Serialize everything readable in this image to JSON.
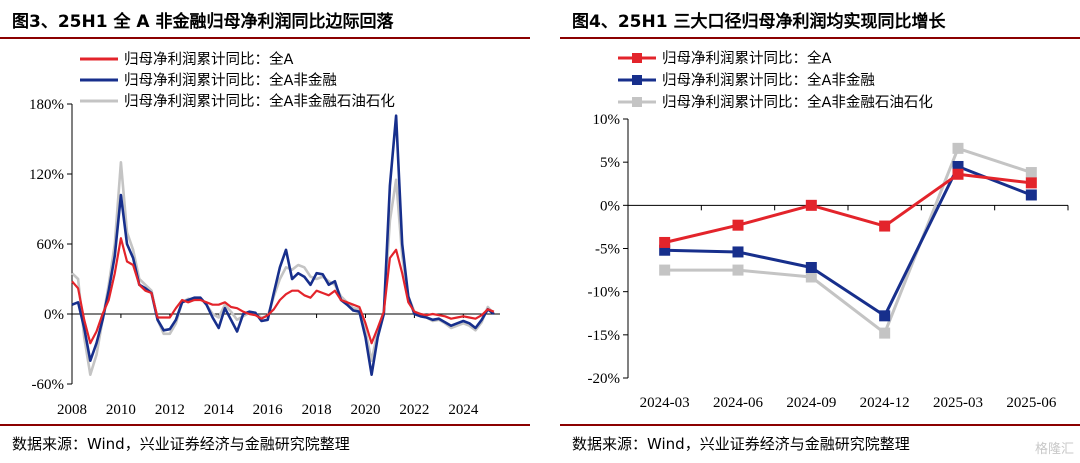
{
  "colors": {
    "red": "#e3242b",
    "navy": "#172f8c",
    "gray": "#c4c4c4",
    "rule": "#8b0000",
    "axis": "#000000"
  },
  "left": {
    "title": "图3、25H1 全 A 非金融归母净利润同比边际回落",
    "source": "数据来源：Wind，兴业证券经济与金融研究院整理"
  },
  "right": {
    "title": "图4、25H1 三大口径归母净利润均实现同比增长",
    "source": "数据来源：Wind，兴业证券经济与金融研究院整理",
    "watermark": "格隆汇"
  },
  "chart_data": [
    {
      "type": "line",
      "title": "图3、25H1 全 A 非金融归母净利润同比边际回落",
      "y_unit": "%",
      "ylim": [
        -60,
        180
      ],
      "yticks": [
        -60,
        0,
        60,
        120,
        180
      ],
      "ytick_labels": [
        "-60%",
        "0%",
        "60%",
        "120%",
        "180%"
      ],
      "xlim": [
        2008,
        2025.5
      ],
      "xticks": [
        "2008",
        "2010",
        "2012",
        "2014",
        "2016",
        "2018",
        "2020",
        "2022",
        "2024"
      ],
      "legend_position": "top-left",
      "series": [
        {
          "name": "归母净利润累计同比：全A",
          "color": "#e3242b",
          "x": [
            2008.0,
            2008.25,
            2008.5,
            2008.75,
            2009.0,
            2009.25,
            2009.5,
            2009.75,
            2010.0,
            2010.25,
            2010.5,
            2010.75,
            2011.0,
            2011.25,
            2011.5,
            2011.75,
            2012.0,
            2012.25,
            2012.5,
            2012.75,
            2013.0,
            2013.25,
            2013.5,
            2013.75,
            2014.0,
            2014.25,
            2014.5,
            2014.75,
            2015.0,
            2015.25,
            2015.5,
            2015.75,
            2016.0,
            2016.25,
            2016.5,
            2016.75,
            2017.0,
            2017.25,
            2017.5,
            2017.75,
            2018.0,
            2018.25,
            2018.5,
            2018.75,
            2019.0,
            2019.25,
            2019.5,
            2019.75,
            2020.0,
            2020.25,
            2020.5,
            2020.75,
            2021.0,
            2021.25,
            2021.5,
            2021.75,
            2022.0,
            2022.25,
            2022.5,
            2022.75,
            2023.0,
            2023.25,
            2023.5,
            2023.75,
            2024.0,
            2024.25,
            2024.5,
            2024.75,
            2025.0,
            2025.25
          ],
          "y": [
            28,
            22,
            -5,
            -25,
            -15,
            0,
            12,
            35,
            65,
            45,
            42,
            25,
            20,
            18,
            -3,
            -3,
            -3,
            5,
            12,
            10,
            12,
            12,
            10,
            8,
            8,
            10,
            6,
            5,
            2,
            0,
            -1,
            -4,
            -1,
            4,
            12,
            17,
            20,
            20,
            16,
            14,
            20,
            18,
            16,
            20,
            12,
            10,
            8,
            6,
            -8,
            -25,
            -12,
            2,
            48,
            55,
            35,
            10,
            2,
            0,
            -1,
            0,
            -1,
            -2,
            -4,
            -3,
            -2,
            -3,
            -4,
            -1,
            4,
            2
          ]
        },
        {
          "name": "归母净利润累计同比：全A非金融",
          "color": "#172f8c",
          "x": [
            2008.0,
            2008.25,
            2008.5,
            2008.75,
            2009.0,
            2009.25,
            2009.5,
            2009.75,
            2010.0,
            2010.25,
            2010.5,
            2010.75,
            2011.0,
            2011.25,
            2011.5,
            2011.75,
            2012.0,
            2012.25,
            2012.5,
            2012.75,
            2013.0,
            2013.25,
            2013.5,
            2013.75,
            2014.0,
            2014.25,
            2014.5,
            2014.75,
            2015.0,
            2015.25,
            2015.5,
            2015.75,
            2016.0,
            2016.25,
            2016.5,
            2016.75,
            2017.0,
            2017.25,
            2017.5,
            2017.75,
            2018.0,
            2018.25,
            2018.5,
            2018.75,
            2019.0,
            2019.25,
            2019.5,
            2019.75,
            2020.0,
            2020.25,
            2020.5,
            2020.75,
            2021.0,
            2021.25,
            2021.5,
            2021.75,
            2022.0,
            2022.25,
            2022.5,
            2022.75,
            2023.0,
            2023.25,
            2023.5,
            2023.75,
            2024.0,
            2024.25,
            2024.5,
            2024.75,
            2025.0,
            2025.25
          ],
          "y": [
            8,
            10,
            -12,
            -40,
            -25,
            -5,
            20,
            50,
            102,
            60,
            48,
            25,
            22,
            18,
            -5,
            -14,
            -13,
            -5,
            10,
            12,
            14,
            14,
            8,
            -3,
            -12,
            5,
            -5,
            -15,
            0,
            2,
            1,
            -6,
            -5,
            18,
            40,
            55,
            30,
            35,
            32,
            25,
            35,
            34,
            25,
            28,
            12,
            8,
            3,
            2,
            -20,
            -52,
            -20,
            0,
            110,
            170,
            60,
            15,
            0,
            -2,
            -3,
            -5,
            -4,
            -7,
            -10,
            -8,
            -6,
            -8,
            -12,
            -5,
            4,
            0
          ]
        },
        {
          "name": "归母净利润累计同比：全A非金融石油石化",
          "color": "#c4c4c4",
          "x": [
            2008.0,
            2008.25,
            2008.5,
            2008.75,
            2009.0,
            2009.25,
            2009.5,
            2009.75,
            2010.0,
            2010.25,
            2010.5,
            2010.75,
            2011.0,
            2011.25,
            2011.5,
            2011.75,
            2012.0,
            2012.25,
            2012.5,
            2012.75,
            2013.0,
            2013.25,
            2013.5,
            2013.75,
            2014.0,
            2014.25,
            2014.5,
            2014.75,
            2015.0,
            2015.25,
            2015.5,
            2015.75,
            2016.0,
            2016.25,
            2016.5,
            2016.75,
            2017.0,
            2017.25,
            2017.5,
            2017.75,
            2018.0,
            2018.25,
            2018.5,
            2018.75,
            2019.0,
            2019.25,
            2019.5,
            2019.75,
            2020.0,
            2020.25,
            2020.5,
            2020.75,
            2021.0,
            2021.25,
            2021.5,
            2021.75,
            2022.0,
            2022.25,
            2022.5,
            2022.75,
            2023.0,
            2023.25,
            2023.5,
            2023.75,
            2024.0,
            2024.25,
            2024.5,
            2024.75,
            2025.0,
            2025.25
          ],
          "y": [
            35,
            30,
            -20,
            -52,
            -35,
            -5,
            25,
            60,
            130,
            70,
            55,
            30,
            25,
            20,
            -5,
            -17,
            -17,
            -8,
            10,
            13,
            12,
            14,
            8,
            0,
            -3,
            8,
            2,
            -5,
            -2,
            1,
            0,
            -3,
            -2,
            15,
            30,
            40,
            38,
            42,
            40,
            32,
            30,
            32,
            28,
            25,
            15,
            10,
            5,
            4,
            -15,
            -40,
            -15,
            0,
            80,
            115,
            50,
            15,
            2,
            0,
            -3,
            -6,
            -5,
            -8,
            -12,
            -10,
            -8,
            -10,
            -14,
            -7,
            6,
            0
          ]
        }
      ]
    },
    {
      "type": "line",
      "title": "图4、25H1 三大口径归母净利润均实现同比增长",
      "y_unit": "%",
      "ylim": [
        -20,
        10
      ],
      "yticks": [
        -20,
        -15,
        -10,
        -5,
        0,
        5,
        10
      ],
      "ytick_labels": [
        "-20%",
        "-15%",
        "-10%",
        "-5%",
        "0%",
        "5%",
        "10%"
      ],
      "categories": [
        "2024-03",
        "2024-06",
        "2024-09",
        "2024-12",
        "2025-03",
        "2025-06"
      ],
      "legend_position": "top-left",
      "series": [
        {
          "name": "归母净利润累计同比：全A",
          "color": "#e3242b",
          "values": [
            -4.3,
            -2.3,
            0.0,
            -2.4,
            3.6,
            2.6
          ]
        },
        {
          "name": "归母净利润累计同比：全A非金融",
          "color": "#172f8c",
          "values": [
            -5.2,
            -5.4,
            -7.2,
            -12.8,
            4.5,
            1.2
          ]
        },
        {
          "name": "归母净利润累计同比：全A非金融石油石化",
          "color": "#c4c4c4",
          "values": [
            -7.5,
            -7.5,
            -8.3,
            -14.8,
            6.6,
            3.8
          ]
        }
      ]
    }
  ]
}
